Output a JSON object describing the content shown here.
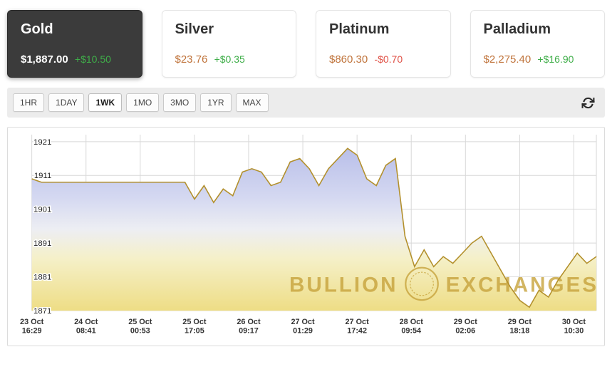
{
  "cards": [
    {
      "name": "Gold",
      "price": "$1,887.00",
      "change": "+$10.50",
      "direction": "up",
      "active": true
    },
    {
      "name": "Silver",
      "price": "$23.76",
      "change": "+$0.35",
      "direction": "up",
      "active": false
    },
    {
      "name": "Platinum",
      "price": "$860.30",
      "change": "-$0.70",
      "direction": "down",
      "active": false
    },
    {
      "name": "Palladium",
      "price": "$2,275.40",
      "change": "+$16.90",
      "direction": "up",
      "active": false
    }
  ],
  "ranges": [
    {
      "label": "1HR",
      "active": false
    },
    {
      "label": "1DAY",
      "active": false
    },
    {
      "label": "1WK",
      "active": true
    },
    {
      "label": "1MO",
      "active": false
    },
    {
      "label": "3MO",
      "active": false
    },
    {
      "label": "1YR",
      "active": false
    },
    {
      "label": "MAX",
      "active": false
    }
  ],
  "colors": {
    "active_card_bg": "#3b3b3b",
    "price_text": "#c0743c",
    "change_up": "#3fae49",
    "change_down": "#e05247",
    "toolbar_bg": "#ececec"
  },
  "chart_data": {
    "type": "area",
    "title": "Gold spot price, 1 week",
    "ylim": [
      1871,
      1921
    ],
    "y_ticks": [
      1921,
      1911,
      1901,
      1891,
      1881,
      1871
    ],
    "x_ticks": [
      {
        "date": "23 Oct",
        "time": "16:29"
      },
      {
        "date": "24 Oct",
        "time": "08:41"
      },
      {
        "date": "25 Oct",
        "time": "00:53"
      },
      {
        "date": "25 Oct",
        "time": "17:05"
      },
      {
        "date": "26 Oct",
        "time": "09:17"
      },
      {
        "date": "27 Oct",
        "time": "01:29"
      },
      {
        "date": "27 Oct",
        "time": "17:42"
      },
      {
        "date": "28 Oct",
        "time": "09:54"
      },
      {
        "date": "29 Oct",
        "time": "02:06"
      },
      {
        "date": "29 Oct",
        "time": "18:18"
      },
      {
        "date": "30 Oct",
        "time": "10:30"
      }
    ],
    "values": [
      1910,
      1909,
      1909,
      1909,
      1909,
      1909,
      1909,
      1909,
      1909,
      1909,
      1909,
      1909,
      1909,
      1909,
      1909,
      1909,
      1909,
      1904,
      1908,
      1903,
      1907,
      1905,
      1912,
      1913,
      1912,
      1908,
      1909,
      1915,
      1916,
      1913,
      1908,
      1913,
      1916,
      1919,
      1917,
      1910,
      1908,
      1914,
      1916,
      1893,
      1884,
      1889,
      1884,
      1887,
      1885,
      1888,
      1891,
      1893,
      1888,
      1883,
      1878,
      1874,
      1872,
      1877,
      1875,
      1880,
      1884,
      1888,
      1885,
      1887
    ],
    "line_color": "#b3902c",
    "grid_color": "#d8d8d8",
    "watermark": "BULLION EXCHANGES",
    "watermark_color": "#c7a33c",
    "fill_gradient": [
      {
        "offset": "0%",
        "color": "#b9bfe9"
      },
      {
        "offset": "30%",
        "color": "#d4d8f1"
      },
      {
        "offset": "50%",
        "color": "#edeef3"
      },
      {
        "offset": "68%",
        "color": "#f5f0c8"
      },
      {
        "offset": "100%",
        "color": "#eedd85"
      }
    ]
  }
}
